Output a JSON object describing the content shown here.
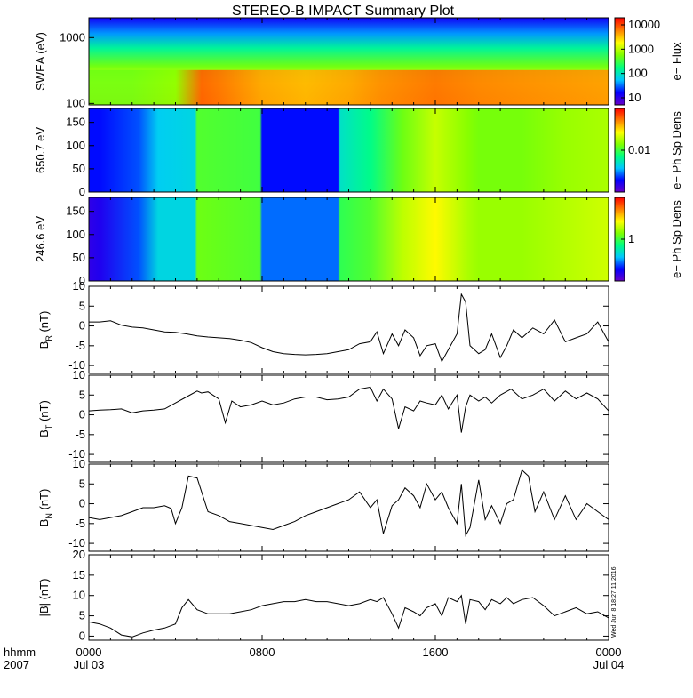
{
  "title": "STEREO-B IMPACT Summary Plot",
  "timestamp": "Wed Jun  8 18:27:11 2016",
  "x_axis": {
    "row1_label": "hhmm",
    "row2_label": "2007",
    "ticks": [
      {
        "hour": 0,
        "top": "0000",
        "bottom": "Jul 03"
      },
      {
        "hour": 8,
        "top": "0800",
        "bottom": ""
      },
      {
        "hour": 16,
        "top": "1600",
        "bottom": ""
      },
      {
        "hour": 24,
        "top": "0000",
        "bottom": "Jul 04"
      }
    ]
  },
  "colors": {
    "spectrogram_scale": [
      "#6a00c8",
      "#0000ff",
      "#00c8ff",
      "#00ff80",
      "#80ff00",
      "#ffff00",
      "#ff8000",
      "#ff0000"
    ]
  },
  "chart_data": [
    {
      "type": "heatmap",
      "name": "SWEA",
      "ylabel": "SWEA (eV)",
      "yscale": "log",
      "ylim": [
        95,
        2000
      ],
      "yticks": [
        "100",
        "1000"
      ],
      "colorbar_label": "e− Flux",
      "colorbar_scale": "log",
      "colorbar_ticks": [
        "10",
        "100",
        "1000",
        "10000"
      ],
      "x_hours": [
        0,
        2,
        4,
        5.2,
        6,
        8,
        10,
        12,
        13.5,
        16,
        18,
        20,
        22,
        24
      ],
      "intensity_low_energy": [
        0.55,
        0.55,
        0.58,
        0.9,
        0.88,
        0.82,
        0.8,
        0.82,
        0.85,
        0.88,
        0.86,
        0.85,
        0.84,
        0.83
      ]
    },
    {
      "type": "heatmap",
      "name": "650.7 eV pitch angle",
      "ylabel": "650.7 eV",
      "ylim": [
        0,
        180
      ],
      "yticks": [
        "0",
        "50",
        "100",
        "150"
      ],
      "colorbar_label": "e− Ph Sp Dens",
      "colorbar_ticks": [
        "0.01"
      ],
      "x_hours": [
        0,
        0.5,
        2.3,
        3.2,
        4.9,
        5.0,
        7.9,
        8.0,
        11.5,
        11.6,
        13.0,
        14.5,
        16.0,
        17.5,
        18.0,
        20.0,
        22.0,
        24.0
      ],
      "intensity": [
        0.15,
        0.15,
        0.2,
        0.3,
        0.32,
        0.52,
        0.5,
        0.15,
        0.15,
        0.35,
        0.42,
        0.55,
        0.65,
        0.58,
        0.56,
        0.56,
        0.6,
        0.62
      ]
    },
    {
      "type": "heatmap",
      "name": "246.6 eV pitch angle",
      "ylabel": "246.6 eV",
      "ylim": [
        0,
        180
      ],
      "yticks": [
        "0",
        "50",
        "100",
        "150"
      ],
      "colorbar_label": "e− Ph Sp Dens",
      "colorbar_ticks": [
        "1"
      ],
      "x_hours": [
        0,
        0.5,
        2.3,
        3.2,
        4.9,
        5.0,
        7.9,
        8.0,
        11.5,
        11.6,
        13.0,
        14.5,
        16.0,
        17.5,
        18.0,
        20.0,
        22.0,
        24.0
      ],
      "intensity": [
        0.08,
        0.1,
        0.2,
        0.32,
        0.32,
        0.55,
        0.52,
        0.22,
        0.22,
        0.48,
        0.52,
        0.64,
        0.72,
        0.62,
        0.6,
        0.6,
        0.63,
        0.66
      ]
    },
    {
      "type": "line",
      "name": "BR",
      "ylabel_main": "B",
      "ylabel_sub": "R",
      "ylabel_unit": " (nT)",
      "ylim": [
        -12,
        10
      ],
      "yticks": [
        -10,
        -5,
        0,
        5,
        10
      ],
      "x": [
        0,
        0.5,
        1,
        1.5,
        2,
        2.5,
        3,
        3.5,
        4,
        4.5,
        5,
        5.5,
        6,
        6.5,
        7,
        7.5,
        8,
        8.5,
        9,
        9.5,
        10,
        10.5,
        11,
        11.5,
        12,
        12.5,
        13,
        13.3,
        13.6,
        14,
        14.3,
        14.6,
        15,
        15.3,
        15.6,
        16,
        16.3,
        16.6,
        17,
        17.2,
        17.4,
        17.6,
        18,
        18.3,
        18.6,
        19,
        19.3,
        19.6,
        20,
        20.5,
        21,
        21.5,
        22,
        22.5,
        23,
        23.5,
        24
      ],
      "y": [
        1,
        1,
        1.3,
        0.2,
        -0.3,
        -0.5,
        -1,
        -1.5,
        -1.6,
        -2,
        -2.5,
        -2.8,
        -3,
        -3.2,
        -3.6,
        -4.2,
        -5.5,
        -6.5,
        -7,
        -7.2,
        -7.3,
        -7.2,
        -7,
        -6.5,
        -6,
        -4.5,
        -4,
        -1.5,
        -7,
        -2,
        -5,
        -1,
        -3,
        -7.5,
        -5,
        -4.5,
        -9,
        -6,
        -2,
        8,
        6,
        -5,
        -7,
        -6,
        -2,
        -8,
        -5,
        -1,
        -3,
        -0.5,
        -2,
        1.5,
        -4,
        -3,
        -2,
        1,
        -4
      ]
    },
    {
      "type": "line",
      "name": "BT",
      "ylabel_main": "B",
      "ylabel_sub": "T",
      "ylabel_unit": " (nT)",
      "ylim": [
        -12,
        10
      ],
      "yticks": [
        -10,
        -5,
        0,
        5,
        10
      ],
      "x": [
        0,
        0.5,
        1,
        1.5,
        2,
        2.5,
        3,
        3.5,
        4,
        4.5,
        5,
        5.2,
        5.5,
        6,
        6.3,
        6.6,
        7,
        7.5,
        8,
        8.5,
        9,
        9.5,
        10,
        10.5,
        11,
        11.5,
        12,
        12.5,
        13,
        13.3,
        13.6,
        14,
        14.3,
        14.6,
        15,
        15.3,
        15.6,
        16,
        16.3,
        16.6,
        17,
        17.2,
        17.4,
        17.6,
        18,
        18.3,
        18.6,
        19,
        19.5,
        20,
        20.5,
        21,
        21.5,
        22,
        22.5,
        23,
        23.5,
        24
      ],
      "y": [
        1,
        1.2,
        1.3,
        1.5,
        0.5,
        1,
        1.2,
        1.5,
        3,
        4.5,
        6,
        5.5,
        5.8,
        4,
        -2,
        3.5,
        2,
        2.5,
        3.5,
        2.5,
        3,
        4,
        4.5,
        4.5,
        3.8,
        4,
        4.5,
        6.5,
        7,
        3.5,
        6.5,
        4,
        -3.5,
        2,
        1,
        3.5,
        3,
        2.5,
        5,
        1.5,
        5,
        -4.5,
        2,
        5,
        3.5,
        4.5,
        3,
        5,
        6.5,
        4,
        5,
        6.5,
        3.5,
        6,
        4,
        5.5,
        4,
        1
      ]
    },
    {
      "type": "line",
      "name": "BN",
      "ylabel_main": "B",
      "ylabel_sub": "N",
      "ylabel_unit": " (nT)",
      "ylim": [
        -12,
        10
      ],
      "yticks": [
        -10,
        -5,
        0,
        5,
        10
      ],
      "x": [
        0,
        0.5,
        1,
        1.5,
        2,
        2.5,
        3,
        3.5,
        3.8,
        4,
        4.3,
        4.6,
        5,
        5.5,
        6,
        6.5,
        7,
        7.5,
        8,
        8.5,
        9,
        9.5,
        10,
        10.5,
        11,
        11.5,
        12,
        12.5,
        13,
        13.3,
        13.6,
        14,
        14.3,
        14.6,
        15,
        15.3,
        15.6,
        16,
        16.3,
        16.6,
        17,
        17.2,
        17.4,
        17.6,
        18,
        18.3,
        18.6,
        19,
        19.3,
        19.6,
        20,
        20.3,
        20.6,
        21,
        21.5,
        22,
        22.5,
        23,
        23.5,
        24
      ],
      "y": [
        -3.5,
        -4,
        -3.5,
        -3,
        -2,
        -1,
        -1,
        -0.5,
        -1.2,
        -5,
        -1,
        7,
        6.5,
        -2,
        -3,
        -4.5,
        -5,
        -5.5,
        -6,
        -6.5,
        -5.5,
        -4.5,
        -3,
        -2,
        -1,
        0,
        1,
        3,
        -1,
        1,
        -7.5,
        -0.5,
        1,
        4,
        2,
        -1,
        5,
        1,
        3,
        -1,
        -5,
        5,
        -8,
        -6,
        6,
        -4,
        -0.5,
        -5,
        0,
        1,
        8.5,
        7,
        -2,
        3,
        -4,
        2,
        -4,
        0,
        -2,
        -4
      ]
    },
    {
      "type": "line",
      "name": "|B|",
      "ylabel_main": "|B| (nT)",
      "ylim": [
        -1,
        20
      ],
      "yticks": [
        0,
        5,
        10,
        15,
        20
      ],
      "x": [
        0,
        0.5,
        1,
        1.5,
        2,
        2.5,
        3,
        3.5,
        4,
        4.3,
        4.6,
        5,
        5.5,
        6,
        6.5,
        7,
        7.5,
        8,
        8.5,
        9,
        9.5,
        10,
        10.5,
        11,
        11.5,
        12,
        12.5,
        13,
        13.3,
        13.6,
        14,
        14.3,
        14.6,
        15,
        15.3,
        15.6,
        16,
        16.3,
        16.6,
        17,
        17.2,
        17.4,
        17.6,
        18,
        18.3,
        18.6,
        19,
        19.3,
        19.6,
        20,
        20.5,
        21,
        21.5,
        22,
        22.5,
        23,
        23.5,
        24
      ],
      "y": [
        3.5,
        3,
        2,
        0.3,
        -0.2,
        0.8,
        1.5,
        2,
        3,
        7,
        9,
        6.5,
        5.5,
        5.5,
        5.5,
        6,
        6.5,
        7.5,
        8,
        8.5,
        8.5,
        9,
        8.5,
        8.5,
        8,
        7.5,
        8,
        9,
        8.5,
        9.5,
        5.5,
        2,
        7,
        6,
        5,
        7,
        8,
        5,
        9.5,
        8.5,
        10,
        3,
        9,
        8.5,
        6.5,
        9,
        8,
        9.5,
        8,
        9,
        9.5,
        7.5,
        5,
        6,
        7,
        5.5,
        6,
        4.5
      ]
    }
  ]
}
